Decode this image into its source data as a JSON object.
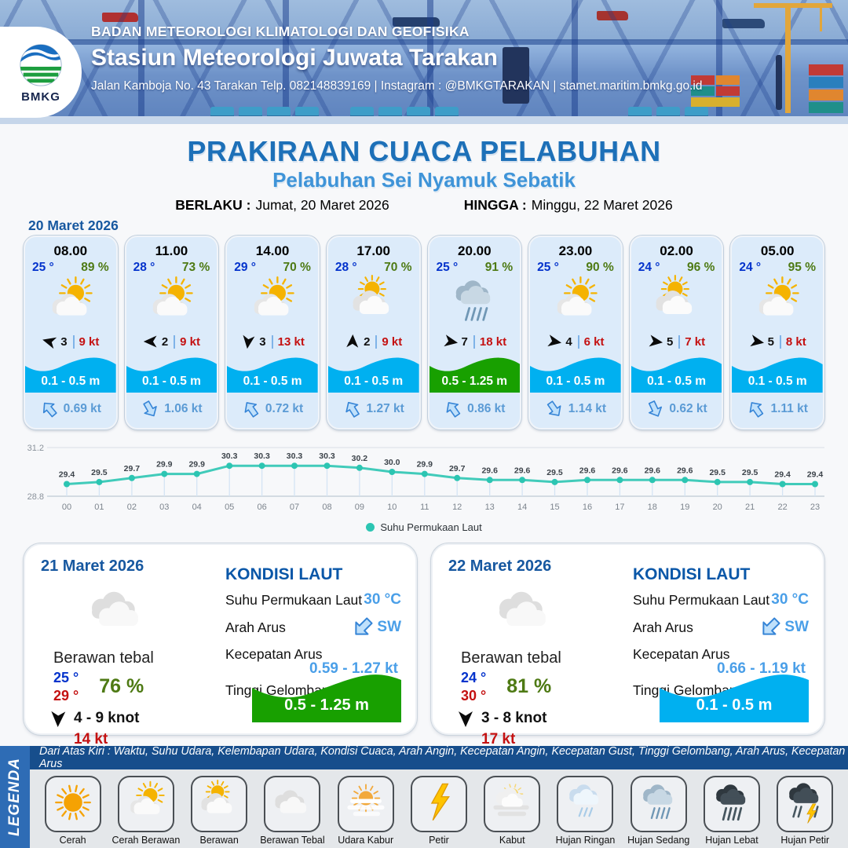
{
  "header": {
    "org": "BADAN METEOROLOGI KLIMATOLOGI DAN GEOFISIKA",
    "station": "Stasiun Meteorologi Juwata Tarakan",
    "address": "Jalan Kamboja No. 43 Tarakan  Telp. 082148839169 | Instagram : @BMKGTARAKAN | stamet.maritim.bmkg.go.id",
    "logo_text": "BMKG"
  },
  "title": {
    "main": "PRAKIRAAN CUACA PELABUHAN",
    "sub": "Pelabuhan Sei Nyamuk Sebatik",
    "berlaku_label": "BERLAKU :",
    "berlaku_value": "Jumat, 20 Maret 2026",
    "hingga_label": "HINGGA :",
    "hingga_value": "Minggu, 22 Maret 2026"
  },
  "forecast_date": "20 Maret 2026",
  "hourly": [
    {
      "time": "08.00",
      "temp": "25 °",
      "hum": "89 %",
      "icon": "cerah-berawan",
      "wind_deg": 195,
      "wind": "3",
      "gust": "9 kt",
      "wave": "0.1 - 0.5 m",
      "wave_color": "blue",
      "cur_deg": -40,
      "cur": "0.69 kt"
    },
    {
      "time": "11.00",
      "temp": "28 °",
      "hum": "73 %",
      "icon": "cerah-berawan",
      "wind_deg": 180,
      "wind": "2",
      "gust": "9 kt",
      "wave": "0.1 - 0.5 m",
      "wave_color": "blue",
      "cur_deg": 150,
      "cur": "1.06 kt"
    },
    {
      "time": "14.00",
      "temp": "29 °",
      "hum": "70 %",
      "icon": "cerah-berawan",
      "wind_deg": 97,
      "wind": "3",
      "gust": "13 kt",
      "wave": "0.1 - 0.5 m",
      "wave_color": "blue",
      "cur_deg": -35,
      "cur": "0.72 kt"
    },
    {
      "time": "17.00",
      "temp": "28 °",
      "hum": "70 %",
      "icon": "berawan",
      "wind_deg": 272,
      "wind": "2",
      "gust": "9 kt",
      "wave": "0.1 - 0.5 m",
      "wave_color": "blue",
      "cur_deg": -32,
      "cur": "1.27 kt"
    },
    {
      "time": "20.00",
      "temp": "25 °",
      "hum": "91 %",
      "icon": "hujan-sedang",
      "wind_deg": 10,
      "wind": "7",
      "gust": "18 kt",
      "wave": "0.5 - 1.25 m",
      "wave_color": "green",
      "cur_deg": -35,
      "cur": "0.86 kt"
    },
    {
      "time": "23.00",
      "temp": "25 °",
      "hum": "90 %",
      "icon": "cerah-berawan",
      "wind_deg": 10,
      "wind": "4",
      "gust": "6 kt",
      "wave": "0.1 - 0.5 m",
      "wave_color": "blue",
      "cur_deg": 145,
      "cur": "1.14 kt"
    },
    {
      "time": "02.00",
      "temp": "24 °",
      "hum": "96 %",
      "icon": "berawan",
      "wind_deg": 8,
      "wind": "5",
      "gust": "7 kt",
      "wave": "0.1 - 0.5 m",
      "wave_color": "blue",
      "cur_deg": 155,
      "cur": "0.62 kt"
    },
    {
      "time": "05.00",
      "temp": "24 °",
      "hum": "95 %",
      "icon": "cerah-berawan",
      "wind_deg": 10,
      "wind": "5",
      "gust": "8 kt",
      "wave": "0.1 - 0.5 m",
      "wave_color": "blue",
      "cur_deg": -35,
      "cur": "1.11 kt"
    }
  ],
  "chart_data": {
    "type": "line",
    "x": [
      "00",
      "01",
      "02",
      "03",
      "04",
      "05",
      "06",
      "07",
      "08",
      "09",
      "10",
      "11",
      "12",
      "13",
      "14",
      "15",
      "16",
      "17",
      "18",
      "19",
      "20",
      "21",
      "22",
      "23"
    ],
    "series": [
      {
        "name": "Suhu Permukaan Laut",
        "values": [
          29.4,
          29.5,
          29.7,
          29.9,
          29.9,
          30.3,
          30.3,
          30.3,
          30.3,
          30.2,
          30.0,
          29.9,
          29.7,
          29.6,
          29.6,
          29.5,
          29.6,
          29.6,
          29.6,
          29.6,
          29.5,
          29.5,
          29.4,
          29.4
        ]
      }
    ],
    "ylim": [
      28.8,
      31.2
    ],
    "yticks": [
      "31.2",
      "28.8"
    ],
    "line_color": "#2cc5b2",
    "legend_position": "bottom",
    "grid": true
  },
  "days": [
    {
      "date": "21 Maret 2026",
      "icon": "berawan-tebal",
      "cond": "Berawan tebal",
      "tmin": "25 °",
      "tmax": "29 °",
      "hum": "76 %",
      "wind_deg": 92,
      "wind": "4  - 9 knot",
      "gust": "14 kt",
      "sea": {
        "title": "KONDISI LAUT",
        "sst_label": "Suhu Permukaan Laut",
        "sst": "30 °C",
        "arah_label": "Arah Arus",
        "arah": "SW",
        "arah_deg": 225,
        "kec_label": "Kecepatan Arus",
        "kec": "0.59 - 1.27 kt",
        "gel_label": "Tinggi Gelombang",
        "gel": "0.5 - 1.25 m",
        "gel_color": "green"
      }
    },
    {
      "date": "22 Maret 2026",
      "icon": "berawan-tebal",
      "cond": "Berawan tebal",
      "tmin": "24 °",
      "tmax": "30 °",
      "hum": "81 %",
      "wind_deg": 90,
      "wind": "3  - 8 knot",
      "gust": "17 kt",
      "sea": {
        "title": "KONDISI LAUT",
        "sst_label": "Suhu Permukaan Laut",
        "sst": "30 °C",
        "arah_label": "Arah Arus",
        "arah": "SW",
        "arah_deg": 225,
        "kec_label": "Kecepatan Arus",
        "kec": "0.66 - 1.19 kt",
        "gel_label": "Tinggi Gelombang",
        "gel": "0.1 - 0.5 m",
        "gel_color": "blue"
      }
    }
  ],
  "legend": {
    "title": "LEGENDA",
    "description": "Dari Atas Kiri : Waktu, Suhu Udara, Kelembapan Udara, Kondisi Cuaca, Arah Angin, Kecepatan Angin, Kecepatan Gust, Tinggi Gelombang, Arah Arus, Kecepatan Arus",
    "items": [
      {
        "label": "Cerah",
        "icon": "cerah"
      },
      {
        "label": "Cerah Berawan",
        "icon": "cerah-berawan"
      },
      {
        "label": "Berawan",
        "icon": "berawan"
      },
      {
        "label": "Berawan Tebal",
        "icon": "berawan-tebal"
      },
      {
        "label": "Udara Kabur",
        "icon": "udara-kabur"
      },
      {
        "label": "Petir",
        "icon": "petir"
      },
      {
        "label": "Kabut",
        "icon": "kabut"
      },
      {
        "label": "Hujan Ringan",
        "icon": "hujan-ringan"
      },
      {
        "label": "Hujan Sedang",
        "icon": "hujan-sedang"
      },
      {
        "label": "Hujan Lebat",
        "icon": "hujan-lebat"
      },
      {
        "label": "Hujan Petir",
        "icon": "hujan-petir"
      }
    ]
  }
}
